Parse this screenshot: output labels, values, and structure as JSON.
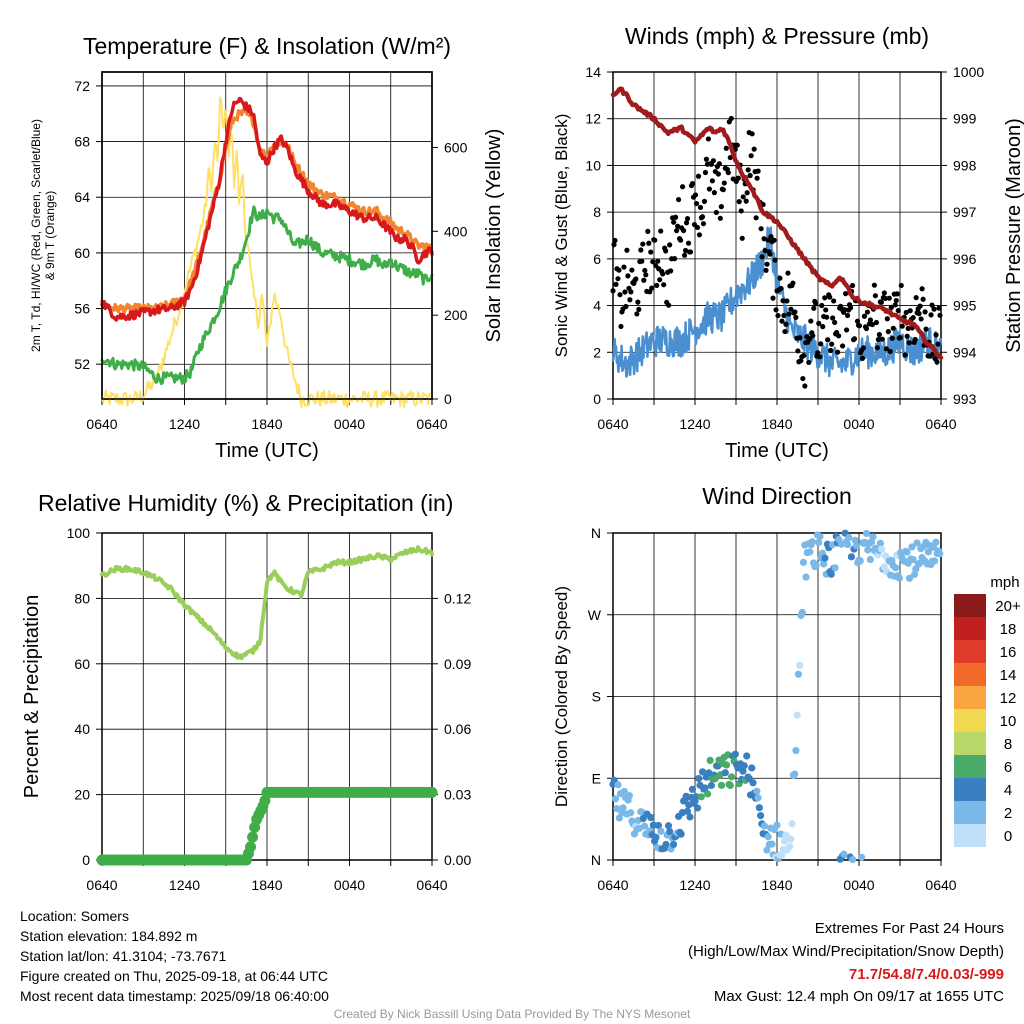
{
  "colors": {
    "red": "#d7191c",
    "orange": "#f2852f",
    "green": "#3fae49",
    "yellow": "#ffe066",
    "blue": "#4a90d0",
    "gust": "#000000",
    "maroon": "#a01c1c",
    "rh": "#9acd5a",
    "precip": "#3fae49",
    "extremes": "#d7191c",
    "credit": "#999999"
  },
  "chart_data": [
    {
      "id": "temp",
      "type": "line",
      "title": "Temperature (F) & Insolation (W/m²)",
      "xlabel": "Time (UTC)",
      "ylabel_left": [
        "2m T, Td, HI/WC (Red, Green, Scarlet/Blue)",
        "& 9m T (Orange)"
      ],
      "ylabel_right": "Solar Insolation (Yellow)",
      "xticks": [
        "0640",
        "1240",
        "1840",
        "0040",
        "0640"
      ],
      "xlim": [
        0,
        24
      ],
      "ylim_left": [
        49.5,
        73
      ],
      "yticks_left": [
        52,
        56,
        60,
        64,
        68,
        72
      ],
      "ylim_right": [
        0,
        780
      ],
      "yticks_right": [
        0,
        200,
        400,
        600
      ],
      "grid": true,
      "series": [
        {
          "name": "2m T",
          "axis": "left",
          "color": "red",
          "x": [
            0,
            1,
            2,
            3,
            4,
            5,
            6,
            6.5,
            7,
            7.5,
            8,
            8.5,
            9,
            9.5,
            10,
            10.5,
            11,
            11.5,
            12,
            12.5,
            13,
            13.5,
            14,
            15,
            16,
            17,
            18,
            19,
            20,
            20.5,
            21,
            21.5,
            22,
            22.5,
            23,
            23.5,
            24
          ],
          "y": [
            56.5,
            55.4,
            55.5,
            55.7,
            55.9,
            56,
            56.5,
            57.5,
            59,
            61,
            63,
            65,
            68,
            70.5,
            71,
            70.5,
            70,
            67,
            66.5,
            67.5,
            68.2,
            67.5,
            66,
            64.5,
            63.5,
            63.5,
            63,
            62.5,
            62.5,
            62,
            61.5,
            61,
            61,
            60.5,
            59.5,
            60,
            60.2
          ]
        },
        {
          "name": "9m T",
          "axis": "left",
          "color": "orange",
          "x": [
            0,
            1,
            2,
            3,
            4,
            5,
            6,
            6.5,
            7,
            7.5,
            8,
            8.5,
            9,
            9.5,
            10,
            10.5,
            11,
            11.5,
            12,
            12.5,
            13,
            13.5,
            14,
            15,
            16,
            17,
            18,
            19,
            20,
            20.5,
            21,
            21.5,
            22,
            22.5,
            23,
            23.5,
            24
          ],
          "y": [
            56.3,
            56,
            56,
            56,
            56,
            56.3,
            56.8,
            58,
            59.5,
            61.3,
            63.3,
            65,
            67.5,
            69.5,
            70,
            70,
            69.5,
            67.3,
            67,
            67.8,
            68,
            67.7,
            66.5,
            65,
            64.2,
            64,
            63.5,
            63,
            63,
            62.5,
            62.2,
            61.7,
            61.5,
            61,
            60.5,
            60.5,
            60.2
          ]
        },
        {
          "name": "2m Td",
          "axis": "left",
          "color": "green",
          "x": [
            0,
            1,
            2,
            3,
            4,
            5,
            6,
            6.5,
            7,
            7.5,
            8,
            8.5,
            9,
            9.5,
            10,
            10.5,
            11,
            11.5,
            12,
            12.5,
            13,
            13.5,
            14,
            15,
            16,
            17,
            18,
            19,
            20,
            20.5,
            21,
            21.5,
            22,
            22.5,
            23,
            23.5,
            24
          ],
          "y": [
            52.5,
            52,
            52,
            51.8,
            51,
            51,
            51,
            51.5,
            53,
            54,
            55,
            56,
            57.3,
            58.5,
            59.5,
            61,
            63,
            62.5,
            63,
            62.5,
            62.5,
            61.5,
            60.5,
            61,
            60,
            59.8,
            59.5,
            59.2,
            59.5,
            59,
            59.5,
            59,
            58.8,
            58.5,
            58.5,
            58,
            58.5
          ]
        },
        {
          "name": "Solar Insolation",
          "axis": "right",
          "color": "yellow",
          "x": [
            0,
            2.5,
            3,
            4,
            4.5,
            5,
            5.5,
            6,
            6.5,
            7,
            7.5,
            7.8,
            8,
            8.2,
            8.4,
            8.6,
            8.8,
            9,
            9.2,
            9.4,
            9.6,
            9.8,
            10,
            10.2,
            10.4,
            10.6,
            10.8,
            11,
            11.2,
            11.4,
            11.6,
            11.8,
            12,
            12.5,
            13,
            13.5,
            14,
            14.5,
            24
          ],
          "y": [
            0,
            0,
            10,
            50,
            100,
            150,
            200,
            260,
            320,
            380,
            450,
            550,
            500,
            620,
            560,
            720,
            640,
            700,
            560,
            660,
            520,
            600,
            450,
            560,
            400,
            380,
            300,
            250,
            220,
            180,
            250,
            200,
            120,
            250,
            200,
            100,
            50,
            0,
            0
          ]
        }
      ]
    },
    {
      "id": "wind",
      "type": "scatter",
      "title": "Winds (mph) & Pressure (mb)",
      "xlabel": "Time (UTC)",
      "ylabel_left": "Sonic Wind & Gust (Blue, Black)",
      "ylabel_right": "Station Pressure (Maroon)",
      "xticks": [
        "0640",
        "1240",
        "1840",
        "0040",
        "0640"
      ],
      "xlim": [
        0,
        24
      ],
      "ylim_left": [
        0,
        14
      ],
      "yticks_left": [
        0,
        2,
        4,
        6,
        8,
        10,
        12,
        14
      ],
      "ylim_right": [
        993,
        1000
      ],
      "yticks_right": [
        993,
        994,
        995,
        996,
        997,
        998,
        999,
        1000
      ],
      "grid": true,
      "series": [
        {
          "name": "Sonic Wind",
          "axis": "left",
          "type": "line",
          "color": "blue",
          "x": [
            0,
            1,
            2,
            3,
            4,
            5,
            6,
            7,
            8,
            9,
            10,
            11,
            11.5,
            12,
            13,
            14,
            15,
            16,
            17,
            18,
            19,
            20,
            21,
            22,
            23,
            24
          ],
          "y": [
            2,
            1.5,
            2,
            2.5,
            2.5,
            2.5,
            3,
            3.5,
            3.5,
            4.5,
            5,
            6,
            7,
            5,
            3,
            2.5,
            2,
            1.5,
            1.5,
            2,
            2,
            2,
            2.5,
            2,
            2.5,
            2
          ]
        },
        {
          "name": "Gust",
          "axis": "left",
          "type": "scatter",
          "color": "gust",
          "x": [
            0,
            0.5,
            1,
            1.5,
            2,
            2.5,
            3,
            3.5,
            4,
            4.5,
            5,
            5.5,
            6,
            6.5,
            7,
            7.5,
            8,
            8.5,
            9,
            9.5,
            10,
            10.5,
            11,
            11.5,
            12,
            12.5,
            13,
            13.5,
            14,
            14.5,
            15,
            15.5,
            16,
            16.5,
            17,
            17.5,
            18,
            18.5,
            19,
            19.5,
            20,
            20.5,
            21,
            21.5,
            22,
            22.5,
            23,
            23.5,
            24
          ],
          "y": [
            6,
            4,
            5,
            4.5,
            5,
            6,
            5.5,
            6.5,
            5,
            7,
            8,
            7,
            9,
            8,
            10,
            8.5,
            9,
            11,
            10,
            8,
            11,
            9,
            7,
            6,
            5,
            4,
            4.5,
            3,
            1.8,
            3.5,
            2.5,
            3,
            3.5,
            2.5,
            3.5,
            4,
            3,
            2.5,
            4,
            3,
            3.5,
            3,
            4,
            3,
            3.5,
            4,
            3,
            2.5,
            2.5
          ]
        },
        {
          "name": "Station Pressure",
          "axis": "right",
          "type": "line",
          "color": "maroon",
          "x": [
            0,
            0.5,
            1,
            1.5,
            2,
            3,
            4,
            5,
            6,
            7,
            7.5,
            8,
            8.5,
            9,
            9.5,
            10,
            11,
            12,
            13,
            14,
            15,
            16,
            16.5,
            17,
            17.5,
            18,
            19,
            20,
            21,
            22,
            23,
            24
          ],
          "y": [
            999.5,
            999.65,
            999.5,
            999.3,
            999.2,
            999.0,
            998.7,
            998.8,
            998.5,
            998.8,
            998.7,
            998.8,
            998.5,
            998.1,
            997.8,
            997.6,
            997.0,
            996.8,
            996.4,
            996.0,
            995.6,
            995.4,
            995.6,
            995.5,
            995.2,
            995.1,
            995.0,
            994.9,
            994.7,
            994.6,
            994.2,
            993.9
          ]
        }
      ]
    },
    {
      "id": "rh",
      "type": "line",
      "title": "Relative Humidity (%) & Precipitation (in)",
      "xlabel": "",
      "ylabel_left": "Percent & Precipitation",
      "xticks": [
        "0640",
        "1240",
        "1840",
        "0040",
        "0640"
      ],
      "xlim": [
        0,
        24
      ],
      "ylim_left": [
        0,
        100
      ],
      "yticks_left": [
        0,
        20,
        40,
        60,
        80,
        100
      ],
      "ylim_right": [
        0,
        0.15
      ],
      "yticks_right": [
        "0.00",
        "0.03",
        "0.06",
        "0.09",
        "0.12"
      ],
      "yticks_right_values": [
        0,
        0.03,
        0.06,
        0.09,
        0.12
      ],
      "grid": true,
      "series": [
        {
          "name": "Relative Humidity",
          "axis": "left",
          "color": "rh",
          "x": [
            0,
            1,
            2,
            3,
            4,
            5,
            6,
            7,
            8,
            9,
            10,
            10.5,
            11,
            11.5,
            12,
            12.5,
            13,
            13.5,
            14,
            14.5,
            15,
            16,
            17,
            18,
            19,
            20,
            21,
            22,
            23,
            24
          ],
          "y": [
            87,
            89,
            89,
            88,
            86,
            83,
            78,
            74,
            70,
            65,
            62,
            63,
            64,
            67,
            85,
            88,
            85,
            83,
            82,
            81,
            88,
            89,
            91,
            91,
            92,
            93,
            92,
            94,
            95,
            94
          ]
        },
        {
          "name": "Precipitation",
          "axis": "right",
          "color": "precip",
          "x": [
            0,
            10.5,
            10.8,
            11,
            11.2,
            11.5,
            11.8,
            12,
            12.3,
            24
          ],
          "y": [
            0,
            0,
            0.006,
            0.012,
            0.018,
            0.022,
            0.026,
            0.031,
            0.031,
            0.031
          ]
        }
      ]
    },
    {
      "id": "dir",
      "type": "scatter",
      "title": "Wind Direction",
      "ylabel_left": "Direction (Colored By Speed)",
      "xticks": [
        "0640",
        "1240",
        "1840",
        "0040",
        "0640"
      ],
      "xlim": [
        0,
        24
      ],
      "ylim_left": [
        0,
        360
      ],
      "yticks_left": [
        "N",
        "E",
        "S",
        "W",
        "N"
      ],
      "yticks_values": [
        0,
        90,
        180,
        270,
        360
      ],
      "grid": true,
      "colorbar": {
        "title": "mph",
        "labels": [
          "20+",
          "18",
          "16",
          "14",
          "12",
          "10",
          "8",
          "6",
          "4",
          "2",
          "0"
        ],
        "colors": [
          "#8b1a1a",
          "#c02020",
          "#e03a2a",
          "#f26a2a",
          "#f9a640",
          "#f0d850",
          "#b8d86a",
          "#4aab68",
          "#3a7fc0",
          "#7ab8e8",
          "#bfe0f8"
        ]
      },
      "series": [
        {
          "name": "Wind Direction",
          "speed_mph": [
            3,
            2,
            2,
            1,
            2,
            3,
            3,
            4,
            4,
            5,
            6,
            5,
            4,
            3,
            1,
            1,
            2,
            2,
            3,
            3,
            2,
            2,
            1,
            2
          ],
          "x": [
            0,
            0.5,
            1,
            1.5,
            2,
            3,
            4,
            5,
            6,
            7,
            8,
            9,
            10,
            11,
            12,
            13,
            14,
            15,
            16,
            17,
            18,
            19,
            20,
            21
          ],
          "y": [
            75,
            60,
            55,
            50,
            40,
            30,
            25,
            45,
            70,
            90,
            95,
            100,
            95,
            30,
            20,
            15,
            330,
            340,
            330,
            350,
            345,
            340,
            335,
            330
          ]
        }
      ]
    }
  ],
  "info": {
    "location": "Location: Somers",
    "elevation": "Station elevation: 184.892 m",
    "latlon": "Station lat/lon: 41.3104; -73.7671",
    "created": "Figure created on Thu, 2025-09-18, at 06:44 UTC",
    "recent": "Most recent data timestamp: 2025/09/18 06:40:00"
  },
  "extremes": {
    "title": "Extremes For Past 24 Hours",
    "subtitle": "(High/Low/Max Wind/Precipitation/Snow Depth)",
    "values": "71.7/54.8/7.4/0.03/-999",
    "max_gust": "Max Gust: 12.4 mph On 09/17 at 1655 UTC"
  },
  "credit": "Created By Nick Bassill Using Data Provided By The NYS Mesonet"
}
